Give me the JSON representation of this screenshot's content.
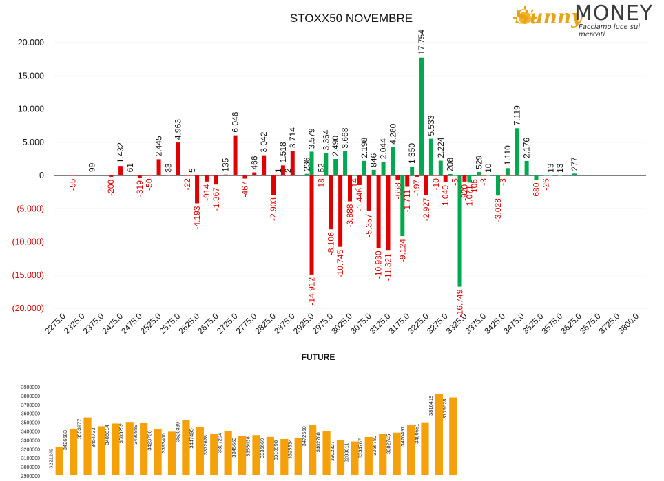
{
  "brand": {
    "name_part1": "Sunny",
    "name_part2": "MONEY",
    "tagline": "Facciamo luce sui mercati",
    "accent": "#e8a319"
  },
  "colors": {
    "call": "#e00000",
    "put": "#00a94f",
    "future": "#f5a10c",
    "neg_label": "#e00000"
  },
  "chart_data": [
    {
      "type": "bar",
      "title": "STOXX50 NOVEMBRE",
      "ylim": [
        -20000,
        20000
      ],
      "yticks": [
        {
          "v": 20000,
          "label": "20.000"
        },
        {
          "v": 15000,
          "label": "15.000"
        },
        {
          "v": 10000,
          "label": "10.000"
        },
        {
          "v": 5000,
          "label": "5.000"
        },
        {
          "v": 0,
          "label": "0"
        },
        {
          "v": -5000,
          "label": "(5.000)"
        },
        {
          "v": -10000,
          "label": "(10.000)"
        },
        {
          "v": -15000,
          "label": "(15.000)"
        },
        {
          "v": -20000,
          "label": "(20.000)"
        }
      ],
      "xticks": [
        "2275.0",
        "2325.0",
        "2375.0",
        "2425.0",
        "2475.0",
        "2525.0",
        "2575.0",
        "2625.0",
        "2675.0",
        "2725.0",
        "2775.0",
        "2825.0",
        "2875.0",
        "2925.0",
        "2975.0",
        "3025.0",
        "3075.0",
        "3125.0",
        "3175.0",
        "3225.0",
        "3275.0",
        "3325.0",
        "3375.0",
        "3425.0",
        "3475.0",
        "3525.0",
        "3575.0",
        "3625.0",
        "3675.0",
        "3725.0",
        "3800.0"
      ],
      "series": [
        {
          "key": "call",
          "points": [
            {
              "x": 2300,
              "y": -55,
              "label": "-55"
            },
            {
              "x": 2350,
              "y": 99,
              "label": "99"
            },
            {
              "x": 2400,
              "y": -200,
              "label": "-200"
            },
            {
              "x": 2425,
              "y": 1432,
              "label": "1.432"
            },
            {
              "x": 2450,
              "y": 61,
              "label": "61"
            },
            {
              "x": 2475,
              "y": -319,
              "label": "-319"
            },
            {
              "x": 2500,
              "y": -50,
              "label": "-50"
            },
            {
              "x": 2525,
              "y": 2445,
              "label": "2.445"
            },
            {
              "x": 2550,
              "y": 33,
              "label": "33"
            },
            {
              "x": 2575,
              "y": 4963,
              "label": "4.963"
            },
            {
              "x": 2600,
              "y": -22,
              "label": "-22"
            },
            {
              "x": 2612.5,
              "y": 5,
              "label": "5"
            },
            {
              "x": 2625,
              "y": -4193,
              "label": "-4.193"
            },
            {
              "x": 2650,
              "y": -914,
              "label": "-914"
            },
            {
              "x": 2675,
              "y": -1367,
              "label": "-1.367"
            },
            {
              "x": 2700,
              "y": 135,
              "label": "135"
            },
            {
              "x": 2725,
              "y": 6046,
              "label": "6.046"
            },
            {
              "x": 2750,
              "y": -467,
              "label": "-467"
            },
            {
              "x": 2775,
              "y": 466,
              "label": "466"
            },
            {
              "x": 2800,
              "y": 3042,
              "label": "3.042"
            },
            {
              "x": 2825,
              "y": -2903,
              "label": "-2.903"
            },
            {
              "x": 2837.5,
              "y": 1,
              "label": "1"
            },
            {
              "x": 2850,
              "y": 1518,
              "label": "1.518"
            },
            {
              "x": 2862.5,
              "y": 2,
              "label": "2"
            },
            {
              "x": 2875,
              "y": 3714,
              "label": "3.714"
            },
            {
              "x": 2925,
              "y": -14912,
              "label": "-14.912"
            },
            {
              "x": 2950,
              "y": -18,
              "label": "-18"
            },
            {
              "x": 2975,
              "y": -8106,
              "label": "-8.106"
            },
            {
              "x": 3000,
              "y": -10745,
              "label": "-10.745"
            },
            {
              "x": 3025,
              "y": -3888,
              "label": "-3.888"
            },
            {
              "x": 3050,
              "y": -1446,
              "label": "-1.446"
            },
            {
              "x": 3075,
              "y": -5357,
              "label": "-5.357"
            },
            {
              "x": 3100,
              "y": -10930,
              "label": "-10.930"
            },
            {
              "x": 3125,
              "y": -11321,
              "label": "-11.321"
            },
            {
              "x": 3150,
              "y": -658,
              "label": "-658"
            },
            {
              "x": 3175,
              "y": -1711,
              "label": "-1.711"
            },
            {
              "x": 3200,
              "y": -197,
              "label": "-197"
            },
            {
              "x": 3225,
              "y": -2927,
              "label": "-2.927"
            },
            {
              "x": 3250,
              "y": -10,
              "label": "-10"
            },
            {
              "x": 3275,
              "y": -1040,
              "label": "-1.040"
            },
            {
              "x": 3325,
              "y": -920,
              "label": "-920"
            },
            {
              "x": 3375,
              "y": -3,
              "label": "-3"
            },
            {
              "x": 3425,
              "y": -3,
              "label": "-3"
            }
          ]
        },
        {
          "key": "put",
          "points": [
            {
              "x": 2912.5,
              "y": 236,
              "label": "236"
            },
            {
              "x": 2925,
              "y": 3579,
              "label": "3.579"
            },
            {
              "x": 2950,
              "y": 52,
              "label": "52"
            },
            {
              "x": 2962.5,
              "y": 3364,
              "label": "3.364"
            },
            {
              "x": 2987.5,
              "y": 2490,
              "label": "2.490"
            },
            {
              "x": 3012.5,
              "y": 3668,
              "label": "3.668"
            },
            {
              "x": 3037.5,
              "y": -14,
              "label": "-14"
            },
            {
              "x": 3062.5,
              "y": 2198,
              "label": "2.198"
            },
            {
              "x": 3087.5,
              "y": 846,
              "label": "846"
            },
            {
              "x": 3112.5,
              "y": 2044,
              "label": "2.044"
            },
            {
              "x": 3137.5,
              "y": 4280,
              "label": "4.280"
            },
            {
              "x": 3162.5,
              "y": -9124,
              "label": "-9.124"
            },
            {
              "x": 3187.5,
              "y": 1350,
              "label": "1.350"
            },
            {
              "x": 3212.5,
              "y": 17754,
              "label": "17.754"
            },
            {
              "x": 3237.5,
              "y": 5533,
              "label": "5.533"
            },
            {
              "x": 3262.5,
              "y": 2224,
              "label": "2.224"
            },
            {
              "x": 3287.5,
              "y": 208,
              "label": "208"
            },
            {
              "x": 3300,
              "y": -5,
              "label": "-5"
            },
            {
              "x": 3312.5,
              "y": -16749,
              "label": "-16.749"
            },
            {
              "x": 3337.5,
              "y": -1071,
              "label": "-1.071"
            },
            {
              "x": 3350,
              "y": -105,
              "label": "-105"
            },
            {
              "x": 3362.5,
              "y": 529,
              "label": "529"
            },
            {
              "x": 3387.5,
              "y": 10,
              "label": "10"
            },
            {
              "x": 3412.5,
              "y": -3028,
              "label": "-3.028"
            },
            {
              "x": 3437.5,
              "y": 1110,
              "label": "1.110"
            },
            {
              "x": 3462.5,
              "y": 7119,
              "label": "7.119"
            },
            {
              "x": 3487.5,
              "y": 2176,
              "label": "2.176"
            },
            {
              "x": 3512.5,
              "y": -680,
              "label": "-680"
            },
            {
              "x": 3537.5,
              "y": -26,
              "label": "-26"
            },
            {
              "x": 3550,
              "y": 13,
              "label": "13"
            },
            {
              "x": 3575,
              "y": 13,
              "label": "13"
            },
            {
              "x": 3612.5,
              "y": 277,
              "label": "277"
            }
          ]
        }
      ]
    },
    {
      "type": "bar",
      "title": "FUTURE",
      "ylim": [
        2900000,
        3900000
      ],
      "yticks": [
        {
          "v": 3900000,
          "label": "3900000"
        },
        {
          "v": 3800000,
          "label": "3800000"
        },
        {
          "v": 3700000,
          "label": "3700000"
        },
        {
          "v": 3600000,
          "label": "3600000"
        },
        {
          "v": 3500000,
          "label": "3500000"
        },
        {
          "v": 3400000,
          "label": "3400000"
        },
        {
          "v": 3300000,
          "label": "3300000"
        },
        {
          "v": 3200000,
          "label": "3200000"
        },
        {
          "v": 3100000,
          "label": "3100000"
        },
        {
          "v": 3000000,
          "label": "3000000"
        },
        {
          "v": 2900000,
          "label": "2900000"
        }
      ],
      "values": [
        3221249,
        3426683,
        3553977,
        3454733,
        3485814,
        3503252,
        3490889,
        3423706,
        3393400,
        3520339,
        3447495,
        3372628,
        3397204,
        3345663,
        3355438,
        3335669,
        3310998,
        3325534,
        3472560,
        3402768,
        3302827,
        3283011,
        3334767,
        3366780,
        3382745,
        3470497,
        3499651,
        3816418,
        3779628
      ],
      "value_labels": [
        "3221249",
        "3426683",
        "3553977",
        "3454733",
        "3485814",
        "3503252",
        "3490889",
        "3423706",
        "3393400",
        "3520339",
        "3447495",
        "3372628",
        "3397204",
        "3345663",
        "3355438",
        "3335669",
        "3310998",
        "3325534",
        "3472560",
        "3402768",
        "3302827",
        "3283011",
        "3334767",
        "3366780",
        "3382745",
        "3470497",
        "3499651",
        "3816418",
        "3779628"
      ]
    }
  ]
}
